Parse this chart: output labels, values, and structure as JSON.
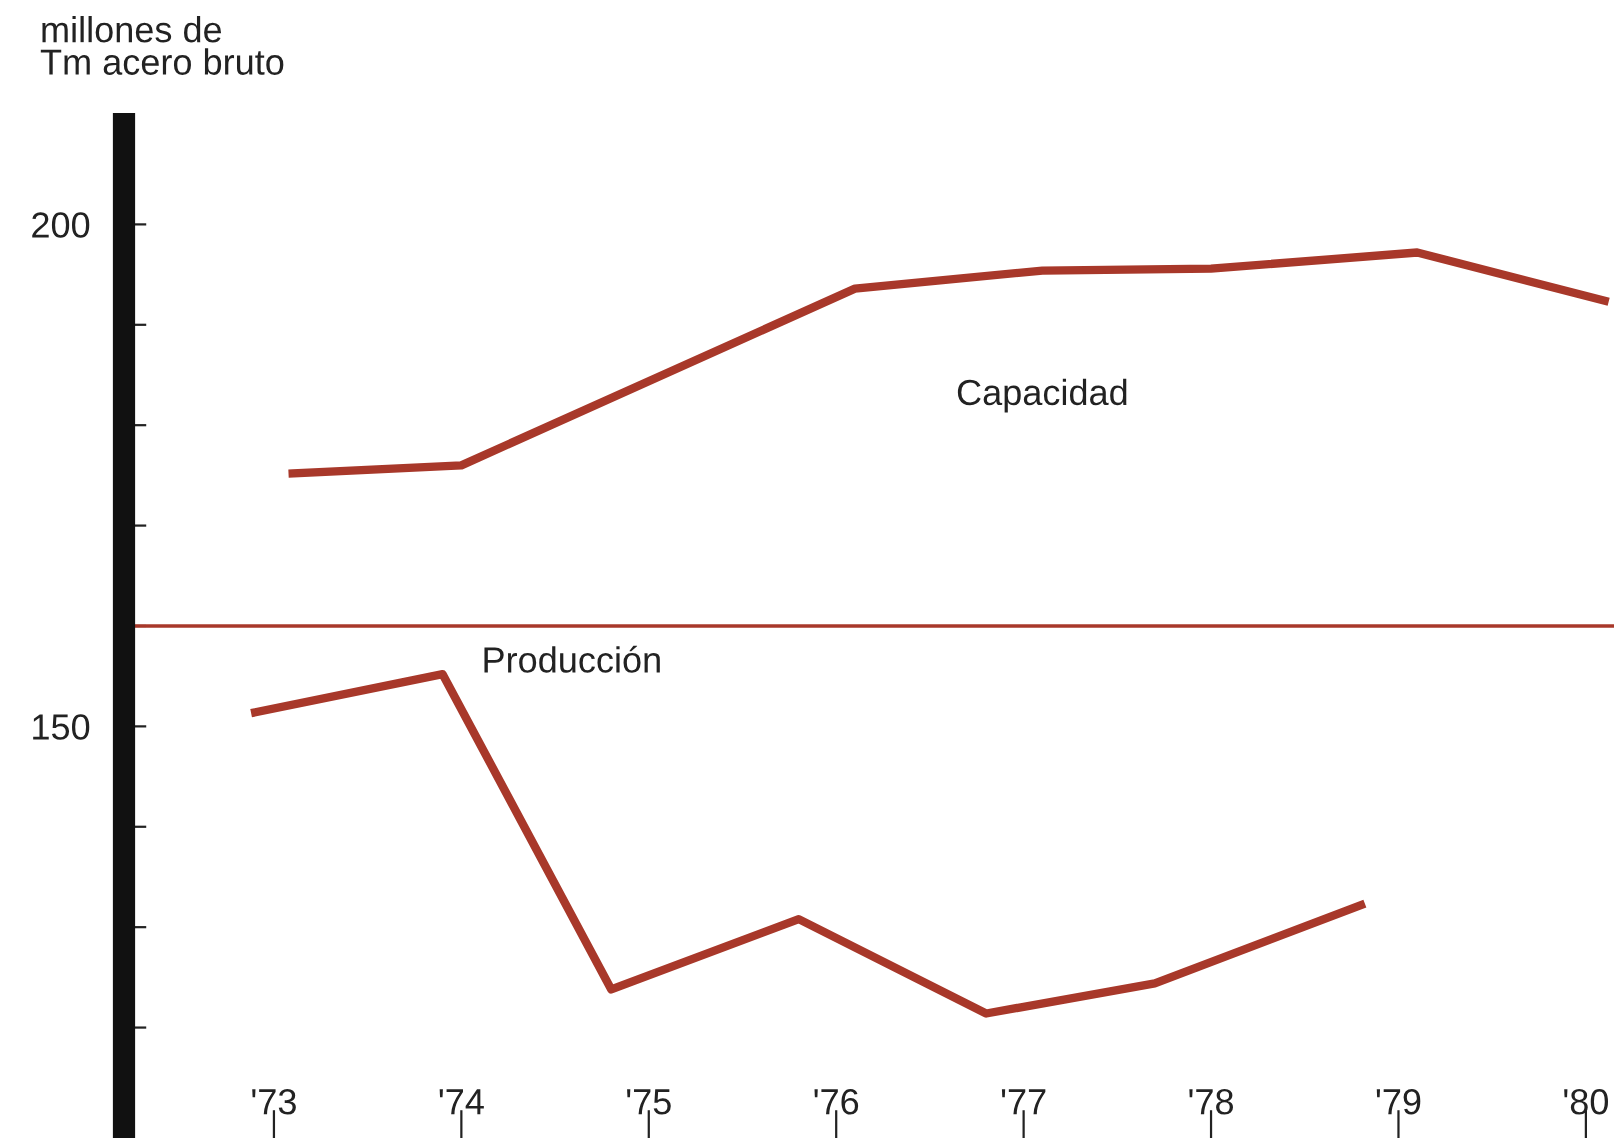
{
  "chart_data": {
    "type": "line",
    "ylabel": "millones de\nTm acero bruto",
    "xlim": [
      1972.2,
      1980.15
    ],
    "ylim": [
      109,
      210
    ],
    "xticks": [
      {
        "value": 1973,
        "label": "'73"
      },
      {
        "value": 1974,
        "label": "'74"
      },
      {
        "value": 1975,
        "label": "'75"
      },
      {
        "value": 1976,
        "label": "'76"
      },
      {
        "value": 1977,
        "label": "'77"
      },
      {
        "value": 1978,
        "label": "'78"
      },
      {
        "value": 1979,
        "label": "'79"
      },
      {
        "value": 1980,
        "label": "'80"
      }
    ],
    "yticks": [
      {
        "value": 120,
        "label": null
      },
      {
        "value": 130,
        "label": null
      },
      {
        "value": 140,
        "label": null
      },
      150,
      {
        "value": 160,
        "label": null
      },
      {
        "value": 170,
        "label": null
      },
      {
        "value": 180,
        "label": null
      },
      {
        "value": 190,
        "label": null
      },
      200
    ],
    "ref_lines": [
      {
        "axis": "y",
        "value": 160,
        "color": "#a8382a"
      }
    ],
    "grid": false,
    "legend": false,
    "marker": "none",
    "line_style": "solid",
    "series": [
      {
        "name": "Capacidad",
        "color": "#a8382a",
        "x": [
          1973.1,
          1974.0,
          1976.1,
          1977.1,
          1978.0,
          1979.1,
          1980.1
        ],
        "values": [
          175.2,
          176,
          193.6,
          195.4,
          195.6,
          197.2,
          192.4
        ]
      },
      {
        "name": "Producción",
        "color": "#a8382a",
        "x": [
          1972.9,
          1973.9,
          1974.8,
          1975.8,
          1976.8,
          1977.7,
          1978.8
        ],
        "values": [
          151.4,
          155.2,
          123.8,
          130.8,
          121.4,
          124.4,
          132.2
        ]
      }
    ]
  }
}
